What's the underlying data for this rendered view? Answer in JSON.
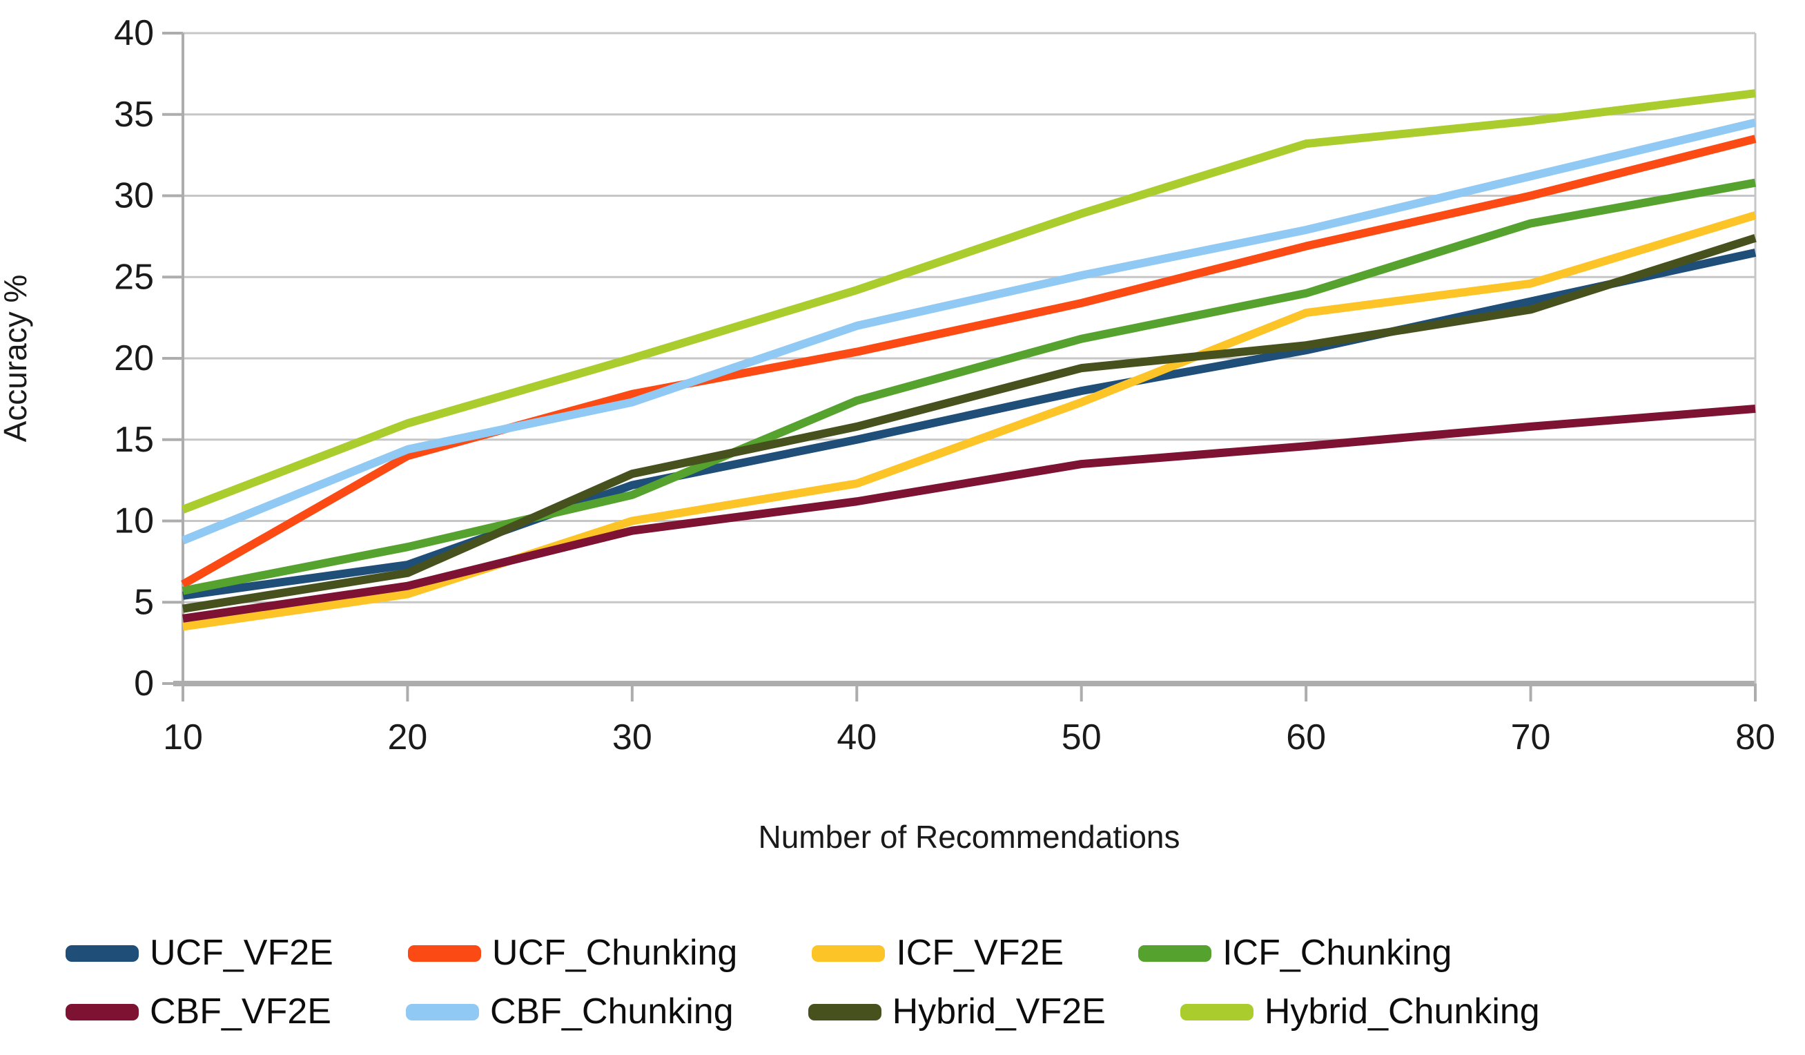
{
  "chart_data": {
    "type": "line",
    "title": "",
    "xlabel": "Number of Recommendations",
    "ylabel": "Accuracy %",
    "x": [
      10,
      20,
      30,
      40,
      50,
      60,
      70,
      80
    ],
    "x_tick_labels": [
      "10",
      "20",
      "30",
      "40",
      "50",
      "60",
      "70",
      "80"
    ],
    "y_ticks": [
      0,
      5,
      10,
      15,
      20,
      25,
      30,
      35,
      40
    ],
    "y_tick_labels": [
      "0",
      "5",
      "10",
      "15",
      "20",
      "25",
      "30",
      "35",
      "40"
    ],
    "xlim": [
      10,
      80
    ],
    "ylim": [
      0,
      40
    ],
    "grid": "horizontal",
    "legend_position": "bottom",
    "series": [
      {
        "name": "UCF_VF2E",
        "color": "#1F4E79",
        "values": [
          5.4,
          7.3,
          12.2,
          15.0,
          18.0,
          20.5,
          23.5,
          26.5
        ]
      },
      {
        "name": "UCF_Chunking",
        "color": "#FB4A14",
        "values": [
          6.1,
          14.0,
          17.8,
          20.4,
          23.4,
          26.9,
          30.0,
          33.5
        ]
      },
      {
        "name": "ICF_VF2E",
        "color": "#FDC428",
        "values": [
          3.5,
          5.5,
          10.0,
          12.3,
          17.3,
          22.8,
          24.6,
          28.8
        ]
      },
      {
        "name": "ICF_Chunking",
        "color": "#56A22E",
        "values": [
          5.7,
          8.4,
          11.6,
          17.4,
          21.2,
          24.0,
          28.3,
          30.8
        ]
      },
      {
        "name": "CBF_VF2E",
        "color": "#7D1233",
        "values": [
          4.0,
          6.0,
          9.4,
          11.2,
          13.5,
          14.6,
          15.8,
          16.9
        ]
      },
      {
        "name": "CBF_Chunking",
        "color": "#90C9F3",
        "values": [
          8.8,
          14.4,
          17.3,
          22.0,
          25.1,
          27.9,
          31.2,
          34.5
        ]
      },
      {
        "name": "Hybrid_VF2E",
        "color": "#46511E",
        "values": [
          4.6,
          6.8,
          12.9,
          15.8,
          19.4,
          20.8,
          23.0,
          27.4
        ]
      },
      {
        "name": "Hybrid_Chunking",
        "color": "#AACC2C",
        "values": [
          10.7,
          16.0,
          20.0,
          24.2,
          28.9,
          33.2,
          34.6,
          36.3
        ]
      }
    ],
    "colors": {
      "background": "#FFFFFF",
      "gridline": "#C6C6C6",
      "axis": "#ADADAD",
      "tick_text": "#1A1A1A"
    }
  }
}
